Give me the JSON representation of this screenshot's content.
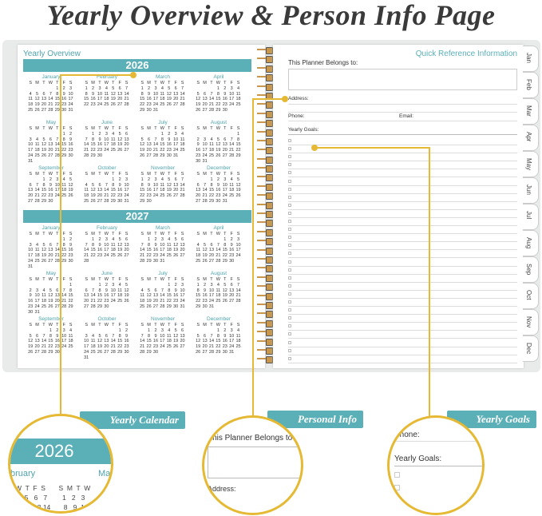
{
  "title": "Yearly Overview & Person Info Page",
  "left_page": {
    "heading": "Yearly Overview",
    "weekdays": [
      "S",
      "M",
      "T",
      "W",
      "T",
      "F",
      "S"
    ],
    "months": [
      "January",
      "February",
      "March",
      "April",
      "May",
      "June",
      "July",
      "August",
      "September",
      "October",
      "November",
      "December"
    ],
    "years": [
      "2026",
      "2027"
    ]
  },
  "right_page": {
    "heading": "Quick Reference Information",
    "belongs_to": "This Planner Belongs to:",
    "address": "Address:",
    "phone": "Phone:",
    "email": "Email:",
    "goals": "Yearly Goals:",
    "goal_checkbox_count": 28
  },
  "tabs": [
    "Jan",
    "Feb",
    "Mar",
    "Apr",
    "May",
    "Jun",
    "Jul",
    "Aug",
    "Sep",
    "Oct",
    "Nov",
    "Dec"
  ],
  "callouts": {
    "calendar": {
      "label": "Yearly Calendar",
      "year": "2026",
      "month_a": "bruary",
      "month_b": "Ma"
    },
    "personal": {
      "label": "Personal Info",
      "belongs": "This Planner Belongs to",
      "address": "Address:"
    },
    "goals": {
      "label": "Yearly Goals",
      "phone": "Phone:",
      "goals": "Yearly Goals:"
    }
  },
  "colors": {
    "teal": "#5bb0b8",
    "gold": "#e6b935"
  }
}
